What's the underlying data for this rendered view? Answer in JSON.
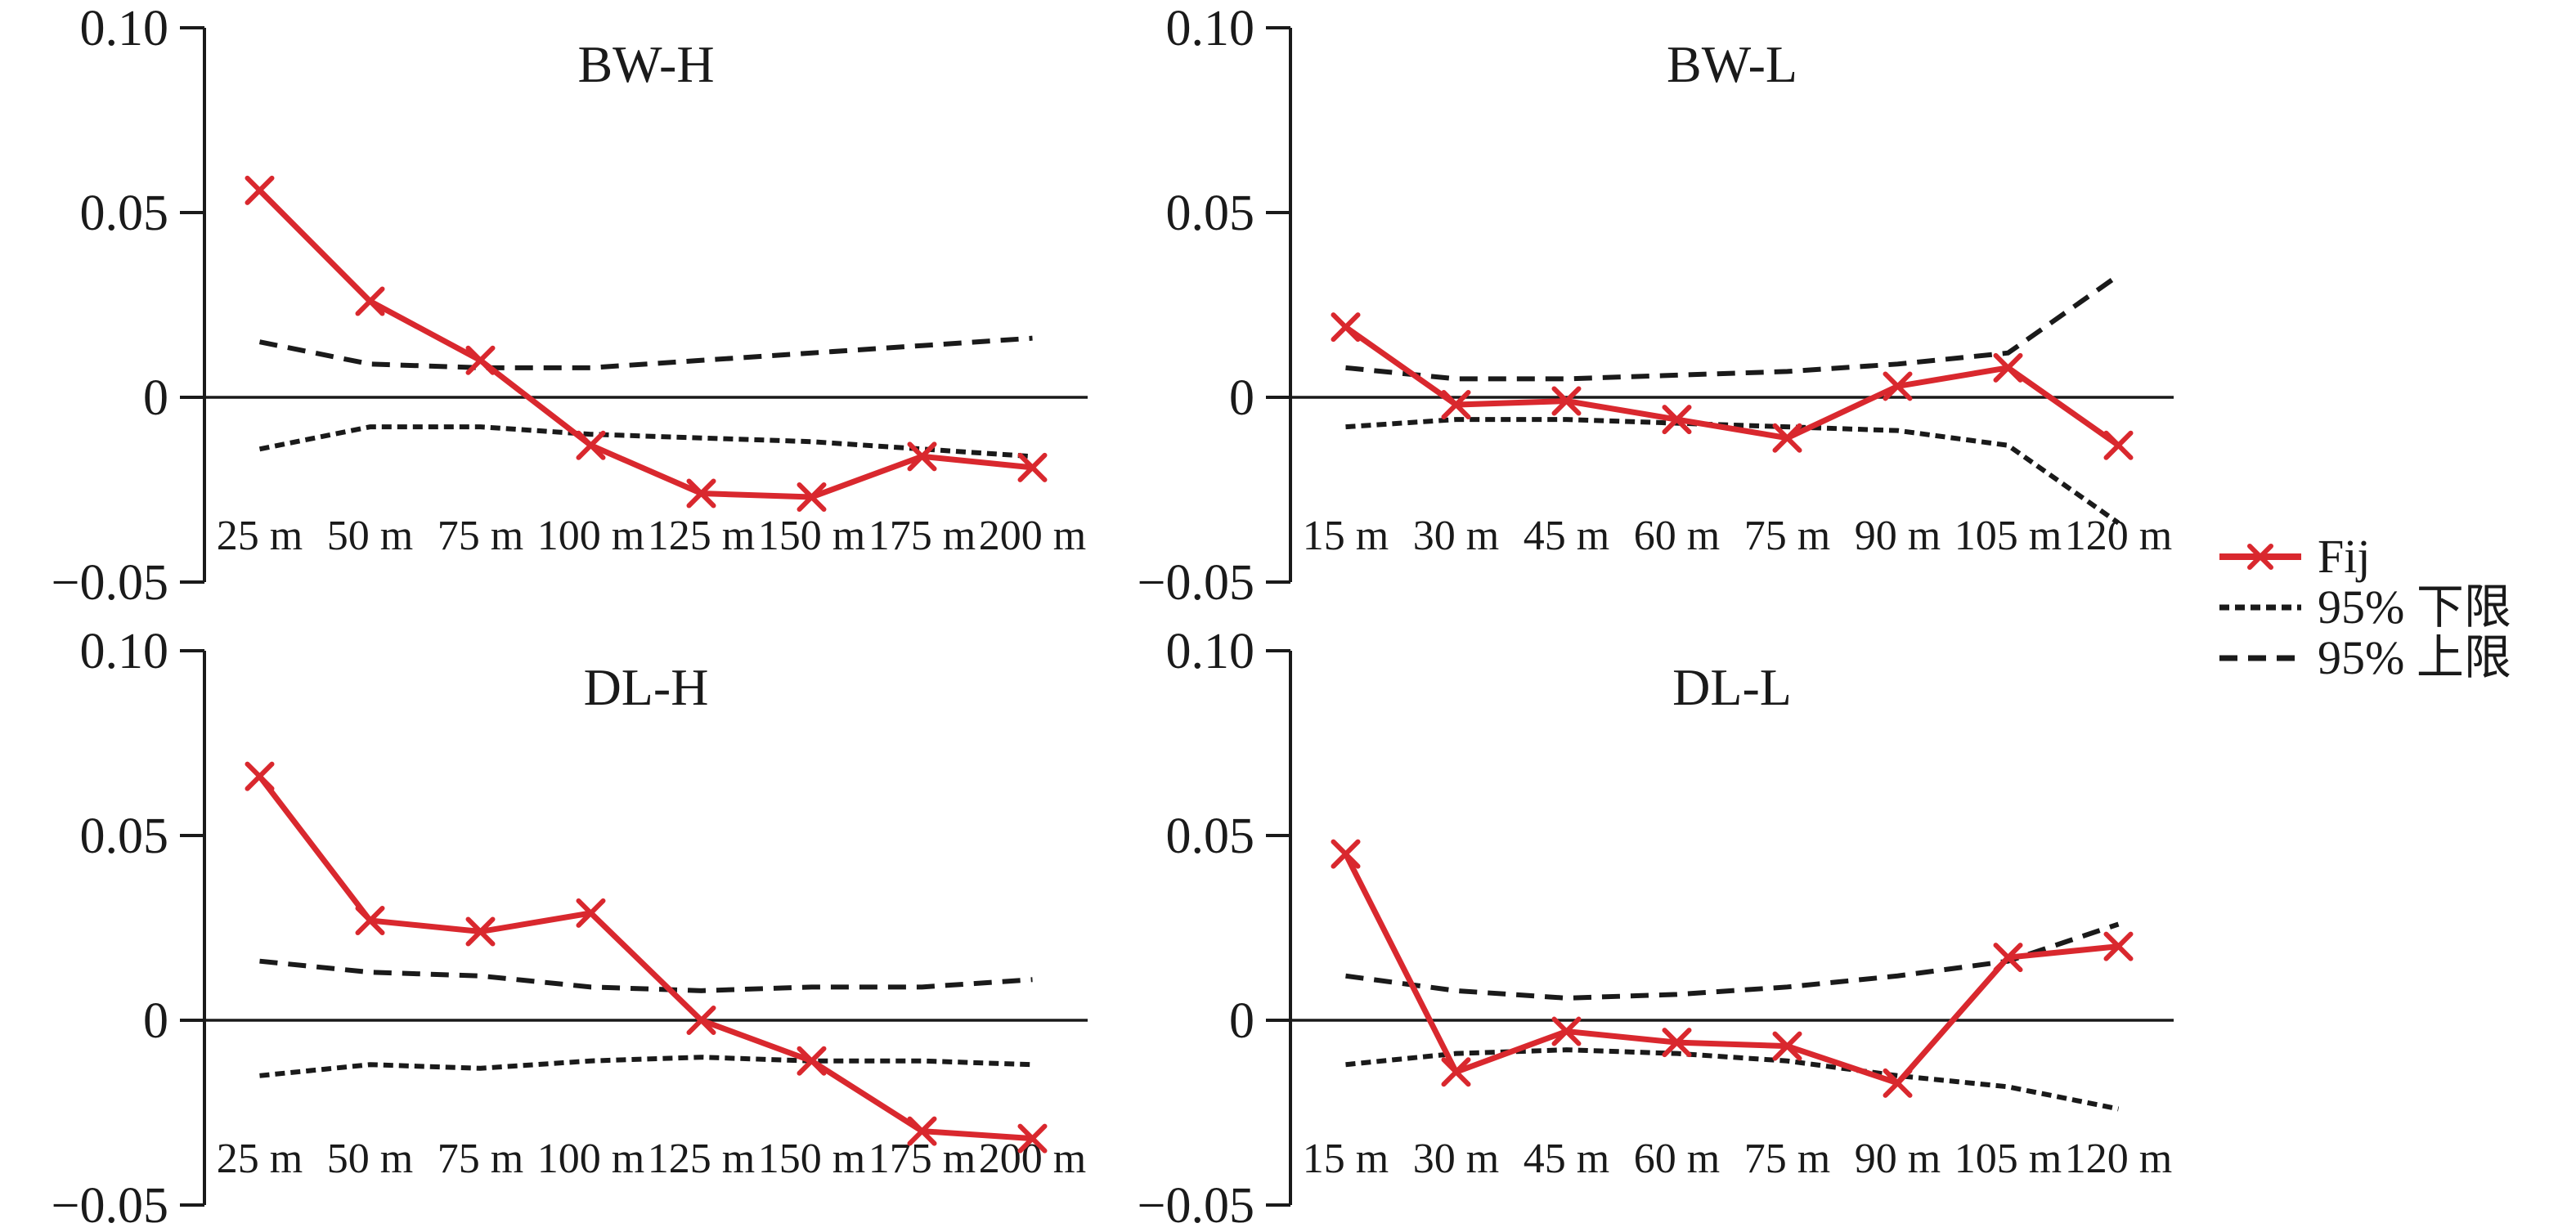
{
  "colors": {
    "fij_red": "#d9282e",
    "line_black": "#1a1a1a",
    "background": "#ffffff"
  },
  "axes": {
    "ylim": [
      -0.05,
      0.1
    ],
    "y_ticks": [
      {
        "label": "0.10",
        "value": 0.1
      },
      {
        "label": "0.05",
        "value": 0.05
      },
      {
        "label": "0",
        "value": 0
      },
      {
        "label": "−0.05",
        "value": -0.05
      }
    ]
  },
  "legend": {
    "items": [
      {
        "label": "Fij",
        "style": "solid-x",
        "color": "#d9282e"
      },
      {
        "label": "95% 下限",
        "style": "dash-short",
        "color": "#1a1a1a"
      },
      {
        "label": "95% 上限",
        "style": "dash-long",
        "color": "#1a1a1a"
      }
    ]
  },
  "chart_data": [
    {
      "type": "line",
      "title": "BW-H",
      "grid": false,
      "ylim": [
        -0.05,
        0.1
      ],
      "categories": [
        "25 m",
        "50 m",
        "75 m",
        "100 m",
        "125 m",
        "150 m",
        "175 m",
        "200 m"
      ],
      "series": [
        {
          "key": "fij",
          "name": "Fij",
          "style": "solid-x",
          "color": "#d9282e",
          "values": [
            0.056,
            0.026,
            0.01,
            -0.013,
            -0.026,
            -0.027,
            -0.016,
            -0.019
          ]
        },
        {
          "key": "lower",
          "name": "95% 下限",
          "style": "dash-short",
          "color": "#1a1a1a",
          "values": [
            -0.014,
            -0.008,
            -0.008,
            -0.01,
            -0.011,
            -0.012,
            -0.014,
            -0.016
          ]
        },
        {
          "key": "upper",
          "name": "95% 上限",
          "style": "dash-long",
          "color": "#1a1a1a",
          "values": [
            0.015,
            0.009,
            0.008,
            0.008,
            0.01,
            0.012,
            0.014,
            0.016
          ]
        }
      ]
    },
    {
      "type": "line",
      "title": "BW-L",
      "grid": false,
      "ylim": [
        -0.05,
        0.1
      ],
      "categories": [
        "15 m",
        "30 m",
        "45 m",
        "60 m",
        "75 m",
        "90 m",
        "105 m",
        "120 m"
      ],
      "series": [
        {
          "key": "fij",
          "name": "Fij",
          "style": "solid-x",
          "color": "#d9282e",
          "values": [
            0.019,
            -0.002,
            -0.001,
            -0.006,
            -0.011,
            0.003,
            0.008,
            -0.013
          ]
        },
        {
          "key": "lower",
          "name": "95% 下限",
          "style": "dash-short",
          "color": "#1a1a1a",
          "values": [
            -0.008,
            -0.006,
            -0.006,
            -0.007,
            -0.008,
            -0.009,
            -0.013,
            -0.034
          ]
        },
        {
          "key": "upper",
          "name": "95% 上限",
          "style": "dash-long",
          "color": "#1a1a1a",
          "values": [
            0.008,
            0.005,
            0.005,
            0.006,
            0.007,
            0.009,
            0.012,
            0.033
          ]
        }
      ]
    },
    {
      "type": "line",
      "title": "DL-H",
      "grid": false,
      "ylim": [
        -0.05,
        0.1
      ],
      "categories": [
        "25 m",
        "50 m",
        "75 m",
        "100 m",
        "125 m",
        "150 m",
        "175 m",
        "200 m"
      ],
      "series": [
        {
          "key": "fij",
          "name": "Fij",
          "style": "solid-x",
          "color": "#d9282e",
          "values": [
            0.066,
            0.027,
            0.024,
            0.029,
            0.0,
            -0.011,
            -0.03,
            -0.032
          ]
        },
        {
          "key": "lower",
          "name": "95% 下限",
          "style": "dash-short",
          "color": "#1a1a1a",
          "values": [
            -0.015,
            -0.012,
            -0.013,
            -0.011,
            -0.01,
            -0.011,
            -0.011,
            -0.012
          ]
        },
        {
          "key": "upper",
          "name": "95% 上限",
          "style": "dash-long",
          "color": "#1a1a1a",
          "values": [
            0.016,
            0.013,
            0.012,
            0.009,
            0.008,
            0.009,
            0.009,
            0.011
          ]
        }
      ]
    },
    {
      "type": "line",
      "title": "DL-L",
      "grid": false,
      "ylim": [
        -0.05,
        0.1
      ],
      "categories": [
        "15 m",
        "30 m",
        "45 m",
        "60 m",
        "75 m",
        "90 m",
        "105 m",
        "120 m"
      ],
      "series": [
        {
          "key": "fij",
          "name": "Fij",
          "style": "solid-x",
          "color": "#d9282e",
          "values": [
            0.045,
            -0.014,
            -0.003,
            -0.006,
            -0.007,
            -0.017,
            0.017,
            0.02
          ]
        },
        {
          "key": "lower",
          "name": "95% 下限",
          "style": "dash-short",
          "color": "#1a1a1a",
          "values": [
            -0.012,
            -0.009,
            -0.008,
            -0.009,
            -0.011,
            -0.015,
            -0.018,
            -0.024
          ]
        },
        {
          "key": "upper",
          "name": "95% 上限",
          "style": "dash-long",
          "color": "#1a1a1a",
          "values": [
            0.012,
            0.008,
            0.006,
            0.007,
            0.009,
            0.012,
            0.016,
            0.026
          ]
        }
      ]
    }
  ]
}
